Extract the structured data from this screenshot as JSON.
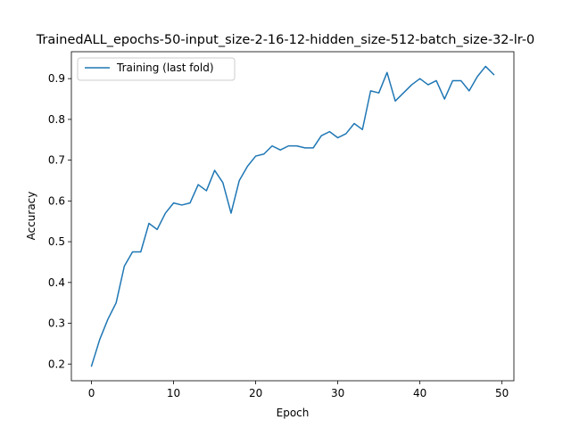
{
  "chart_data": {
    "type": "line",
    "title": "TrainedALL_epochs-50-input_size-2-16-12-hidden_size-512-batch_size-32-lr-0",
    "xlabel": "Epoch",
    "ylabel": "Accuracy",
    "xlim": [
      -2.45,
      51.45
    ],
    "ylim": [
      0.159,
      0.966
    ],
    "xticks": [
      0,
      10,
      20,
      30,
      40,
      50
    ],
    "yticks": [
      0.2,
      0.3,
      0.4,
      0.5,
      0.6,
      0.7,
      0.8,
      0.9
    ],
    "ytick_labels": [
      "0.2",
      "0.3",
      "0.4",
      "0.5",
      "0.6",
      "0.7",
      "0.8",
      "0.9"
    ],
    "grid": false,
    "legend": {
      "position": "upper-left"
    },
    "x": [
      0,
      1,
      2,
      3,
      4,
      5,
      6,
      7,
      8,
      9,
      10,
      11,
      12,
      13,
      14,
      15,
      16,
      17,
      18,
      19,
      20,
      21,
      22,
      23,
      24,
      25,
      26,
      27,
      28,
      29,
      30,
      31,
      32,
      33,
      34,
      35,
      36,
      37,
      38,
      39,
      40,
      41,
      42,
      43,
      44,
      45,
      46,
      47,
      48,
      49
    ],
    "series": [
      {
        "name": "Training (last fold)",
        "color": "#1f77b4",
        "values": [
          0.195,
          0.26,
          0.31,
          0.35,
          0.44,
          0.475,
          0.475,
          0.545,
          0.53,
          0.57,
          0.595,
          0.59,
          0.595,
          0.64,
          0.625,
          0.675,
          0.645,
          0.57,
          0.65,
          0.685,
          0.71,
          0.715,
          0.735,
          0.725,
          0.735,
          0.735,
          0.73,
          0.73,
          0.76,
          0.77,
          0.755,
          0.765,
          0.79,
          0.775,
          0.87,
          0.865,
          0.915,
          0.845,
          0.865,
          0.885,
          0.9,
          0.885,
          0.895,
          0.85,
          0.895,
          0.895,
          0.87,
          0.905,
          0.93,
          0.91
        ]
      }
    ]
  }
}
